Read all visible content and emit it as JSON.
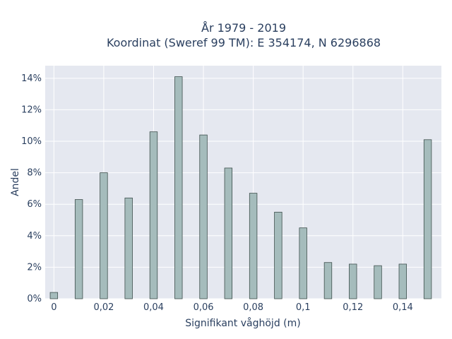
{
  "chart_data": {
    "type": "bar",
    "title_line1": "År 1979 - 2019",
    "title_line2": "Koordinat (Sweref 99 TM): E 354174, N 6296868",
    "xlabel": "Signifikant våghöjd (m)",
    "ylabel": "Andel",
    "x": [
      0,
      0.01,
      0.02,
      0.03,
      0.04,
      0.05,
      0.06,
      0.07,
      0.08,
      0.09,
      0.1,
      0.11,
      0.12,
      0.13,
      0.14,
      0.15
    ],
    "values": [
      0.4,
      6.3,
      8.0,
      6.4,
      10.6,
      14.1,
      10.4,
      8.3,
      6.7,
      5.5,
      4.5,
      2.3,
      2.2,
      2.1,
      2.2,
      10.1
    ],
    "xlim": [
      -0.0035,
      0.1555
    ],
    "ylim": [
      0,
      14.8
    ],
    "xticks": [
      0,
      0.02,
      0.04,
      0.06,
      0.08,
      0.1,
      0.12,
      0.14
    ],
    "xtick_labels": [
      "0",
      "0,02",
      "0,04",
      "0,06",
      "0,08",
      "0,1",
      "0,12",
      "0,14"
    ],
    "yticks": [
      0,
      2,
      4,
      6,
      8,
      10,
      12,
      14
    ],
    "ytick_labels": [
      "0%",
      "2%",
      "4%",
      "6%",
      "8%",
      "10%",
      "12%",
      "14%"
    ],
    "grid": true,
    "colors": {
      "bar": "#a5bcbc",
      "bar_outline": "#3e4f4c",
      "plot_bg": "#e5e8f0",
      "grid": "#ffffff",
      "text": "#2a3f5f"
    }
  }
}
